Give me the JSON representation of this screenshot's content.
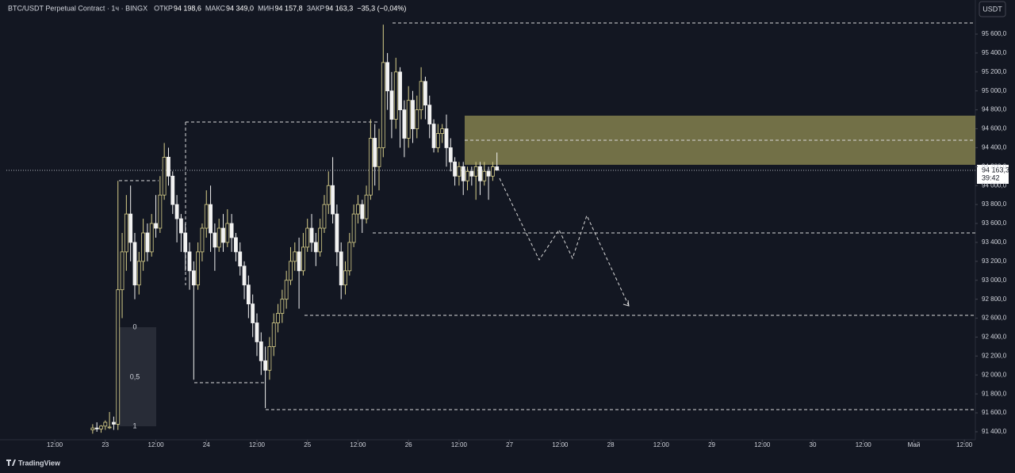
{
  "chart_data": {
    "type": "candlestick",
    "title": "BTC/USDT Perpetual Contract · 1ч · BINGX",
    "header": [
      {
        "label": "ОТКР",
        "value": "94 198,6"
      },
      {
        "label": "МАКС",
        "value": "94 349,0"
      },
      {
        "label": "МИН",
        "value": "94 157,8"
      },
      {
        "label": "ЗАКР",
        "value": "94 163,3"
      }
    ],
    "change": "−35,3 (−0,04%)",
    "currency": "USDT",
    "last_price_label": "94 163,3",
    "countdown": "39:42",
    "brand": "TradingView",
    "fib_labels": [
      "0",
      "0,5",
      "1"
    ],
    "up_color": "#d8cf8a",
    "down_color": "#f2f2f2",
    "grid": false,
    "open": [
      91420,
      91440,
      91430,
      91460,
      91450,
      91500,
      91480,
      92900,
      93300,
      93700,
      93400,
      92950,
      93200,
      93500,
      93300,
      93600,
      93550,
      93900,
      94300,
      94100,
      93800,
      93650,
      93500,
      93300,
      93100,
      92950,
      93300,
      93550,
      93800,
      93500,
      93350,
      93550,
      93400,
      93600,
      93450,
      93300,
      93150,
      92950,
      92750,
      92550,
      92350,
      92150,
      92050,
      92300,
      92550,
      92650,
      92800,
      93000,
      93200,
      93300,
      93100,
      93350,
      93550,
      93400,
      93300,
      93550,
      93800,
      94000,
      93700,
      93300,
      92950,
      93100,
      93400,
      93700,
      93800,
      93650,
      93900,
      94500,
      94200,
      94400,
      95300,
      95000,
      94700,
      95200,
      94800,
      94500,
      94900,
      94600,
      94800,
      95100,
      94850,
      94650,
      94400,
      94550,
      94600,
      94400,
      94250,
      94100,
      94200,
      94050,
      94150,
      94100,
      94200,
      94050,
      94150,
      94100,
      94198.6
    ],
    "high": [
      91480,
      91500,
      91470,
      91520,
      91609,
      91560,
      94050,
      93500,
      93900,
      94000,
      93500,
      93300,
      93650,
      93600,
      93700,
      93900,
      94100,
      94450,
      94400,
      94150,
      93900,
      93700,
      93600,
      93400,
      93200,
      93400,
      93600,
      93950,
      94000,
      93600,
      93650,
      93700,
      93750,
      93700,
      93500,
      93400,
      93200,
      93050,
      92850,
      92650,
      92450,
      92300,
      92400,
      92650,
      92750,
      92900,
      93100,
      93350,
      93400,
      93450,
      93500,
      93650,
      93700,
      93500,
      93650,
      93900,
      94150,
      94300,
      93800,
      93400,
      93200,
      93500,
      93800,
      93900,
      93850,
      94000,
      94700,
      94650,
      94600,
      95700,
      95400,
      95200,
      95350,
      95250,
      94900,
      95050,
      95000,
      94950,
      95250,
      95150,
      94950,
      94700,
      94650,
      94650,
      94750,
      94500,
      94300,
      94250,
      94250,
      94200,
      94200,
      94250,
      94250,
      94250,
      94200,
      94250,
      94349
    ],
    "low": [
      91380,
      91400,
      91390,
      91420,
      91430,
      91420,
      91420,
      92600,
      93100,
      93200,
      92800,
      92850,
      93100,
      93200,
      93250,
      93450,
      93500,
      93850,
      94000,
      93700,
      93400,
      93300,
      93100,
      92900,
      91950,
      92900,
      93200,
      93450,
      93300,
      93100,
      93300,
      93300,
      93350,
      93300,
      93200,
      93050,
      92800,
      92600,
      92400,
      92200,
      92000,
      91650,
      91950,
      92200,
      92450,
      92550,
      92700,
      92950,
      93100,
      92700,
      93050,
      93300,
      93300,
      93150,
      93250,
      93500,
      93700,
      93600,
      93150,
      92800,
      92850,
      93050,
      93350,
      93600,
      93500,
      93600,
      93850,
      94000,
      93950,
      94300,
      94800,
      94500,
      94600,
      94400,
      94300,
      94400,
      94450,
      94500,
      94700,
      94700,
      94500,
      94350,
      94350,
      94450,
      94200,
      94150,
      94000,
      94000,
      93900,
      93950,
      94000,
      93850,
      93900,
      94000,
      93850,
      94050,
      94157.8
    ],
    "close": [
      91440,
      91430,
      91460,
      91500,
      91450,
      91480,
      92900,
      93300,
      93700,
      93400,
      92950,
      93200,
      93500,
      93300,
      93600,
      93550,
      93900,
      94300,
      94100,
      93800,
      93650,
      93500,
      93300,
      93100,
      92950,
      93300,
      93550,
      93800,
      93500,
      93350,
      93550,
      93400,
      93600,
      93450,
      93300,
      93150,
      92950,
      92750,
      92550,
      92350,
      92150,
      92050,
      92300,
      92550,
      92650,
      92800,
      93000,
      93200,
      93300,
      93100,
      93350,
      93550,
      93400,
      93300,
      93550,
      93800,
      94000,
      93700,
      93300,
      92950,
      93100,
      93400,
      93700,
      93800,
      93650,
      93900,
      94500,
      94200,
      94400,
      95300,
      95000,
      94700,
      95200,
      94800,
      94500,
      94900,
      94600,
      94800,
      95100,
      94850,
      94650,
      94400,
      94550,
      94600,
      94400,
      94250,
      94100,
      94200,
      94050,
      94150,
      94100,
      94200,
      94050,
      94150,
      94100,
      94198.6,
      94163.3
    ],
    "xlim": [
      -20.5,
      209.6
    ],
    "xticks": [
      {
        "value": -9,
        "label": "12:00"
      },
      {
        "value": 3,
        "label": "23"
      },
      {
        "value": 15,
        "label": "12:00"
      },
      {
        "value": 27,
        "label": "24"
      },
      {
        "value": 39,
        "label": "12:00"
      },
      {
        "value": 51,
        "label": "25"
      },
      {
        "value": 63,
        "label": "12:00"
      },
      {
        "value": 75,
        "label": "26"
      },
      {
        "value": 87,
        "label": "12:00"
      },
      {
        "value": 99,
        "label": "27"
      },
      {
        "value": 111,
        "label": "12:00"
      },
      {
        "value": 123,
        "label": "28"
      },
      {
        "value": 135,
        "label": "12:00"
      },
      {
        "value": 147,
        "label": "29"
      },
      {
        "value": 159,
        "label": "12:00"
      },
      {
        "value": 171,
        "label": "30"
      },
      {
        "value": 183,
        "label": "12:00"
      },
      {
        "value": 195,
        "label": "Май"
      },
      {
        "value": 207,
        "label": "12:00"
      }
    ],
    "ylim": [
      91316,
      95960
    ],
    "yticks": [
      {
        "value": 91400,
        "label": "91 400,0"
      },
      {
        "value": 91600,
        "label": "91 600,0"
      },
      {
        "value": 91800,
        "label": "91 800,0"
      },
      {
        "value": 92000,
        "label": "92 000,0"
      },
      {
        "value": 92200,
        "label": "92 200,0"
      },
      {
        "value": 92400,
        "label": "92 400,0"
      },
      {
        "value": 92600,
        "label": "92 600,0"
      },
      {
        "value": 92800,
        "label": "92 800,0"
      },
      {
        "value": 93000,
        "label": "93 000,0"
      },
      {
        "value": 93200,
        "label": "93 200,0"
      },
      {
        "value": 93400,
        "label": "93 400,0"
      },
      {
        "value": 93600,
        "label": "93 600,0"
      },
      {
        "value": 93800,
        "label": "93 800,0"
      },
      {
        "value": 94000,
        "label": "94 000,0"
      },
      {
        "value": 94200,
        "label": "94 200,0"
      },
      {
        "value": 94400,
        "label": "94 400,0"
      },
      {
        "value": 94600,
        "label": "94 600,0"
      },
      {
        "value": 94800,
        "label": "94 800,0"
      },
      {
        "value": 95000,
        "label": "95 000,0"
      },
      {
        "value": 95200,
        "label": "95 200,0"
      },
      {
        "value": 95400,
        "label": "95 400,0"
      },
      {
        "value": 95600,
        "label": "95 600,0"
      }
    ]
  }
}
